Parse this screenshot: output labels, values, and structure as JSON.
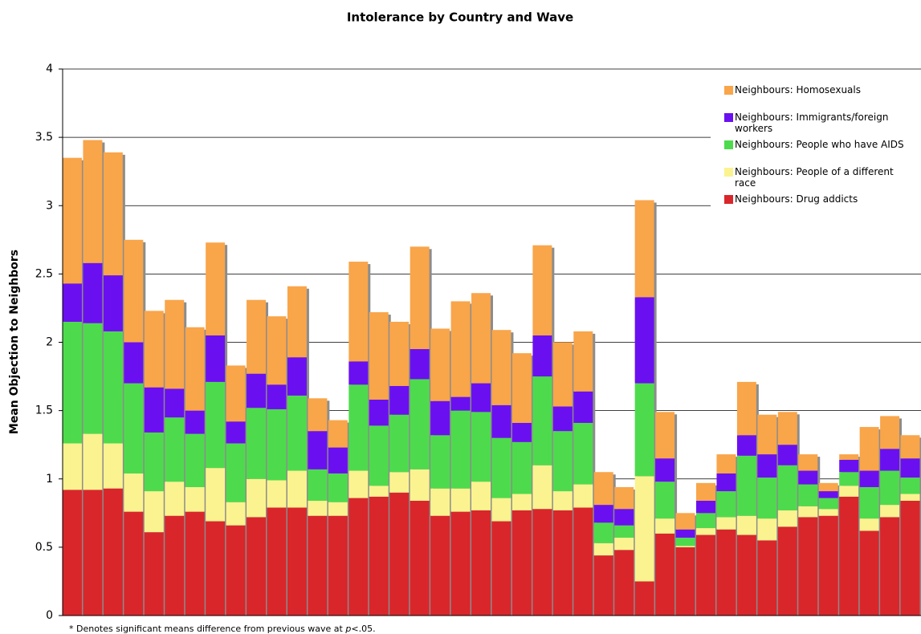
{
  "chart_data": {
    "type": "stacked_bar",
    "title": "Intolerance by Country and Wave",
    "y_label": "Mean Objection to Neighbors",
    "footnote": [
      "* Denotes significant means difference from previous wave at ",
      "p",
      "<.05."
    ],
    "categories": [
      null,
      null,
      null,
      null,
      null,
      null,
      null,
      null,
      null,
      null,
      null,
      null,
      null,
      null,
      null,
      null,
      null,
      null,
      null,
      null,
      null,
      null,
      null,
      null,
      null,
      null,
      null,
      null,
      null,
      null,
      null,
      null,
      null,
      null,
      null,
      null,
      null,
      null,
      null,
      null,
      null,
      null
    ],
    "ylim": [
      0,
      4
    ],
    "yticks": [
      0,
      0.5,
      1,
      1.5,
      2,
      2.5,
      3,
      3.5,
      4
    ],
    "grid": true,
    "legend": "upper right",
    "series": [
      {
        "name": "Neighbours: Drug addicts",
        "color": "#d9262b",
        "values": [
          0.92,
          0.92,
          0.93,
          0.76,
          0.61,
          0.73,
          0.76,
          0.69,
          0.66,
          0.72,
          0.79,
          0.79,
          0.73,
          0.73,
          0.86,
          0.87,
          0.9,
          0.84,
          0.73,
          0.76,
          0.77,
          0.69,
          0.77,
          0.78,
          0.77,
          0.79,
          0.44,
          0.48,
          0.25,
          0.6,
          0.5,
          0.59,
          0.63,
          0.59,
          0.55,
          0.65,
          0.72,
          0.73,
          0.87,
          0.62,
          0.72,
          0.84
        ]
      },
      {
        "name": "Neighbours: People of a different race",
        "color": "#fbf38f",
        "values": [
          0.34,
          0.41,
          0.33,
          0.28,
          0.3,
          0.25,
          0.18,
          0.39,
          0.17,
          0.28,
          0.2,
          0.27,
          0.11,
          0.1,
          0.2,
          0.08,
          0.15,
          0.23,
          0.2,
          0.17,
          0.21,
          0.17,
          0.12,
          0.32,
          0.14,
          0.17,
          0.09,
          0.09,
          0.77,
          0.11,
          0.01,
          0.05,
          0.09,
          0.14,
          0.16,
          0.12,
          0.08,
          0.05,
          0.08,
          0.09,
          0.09,
          0.05
        ]
      },
      {
        "name": "Neighbours: People who have AIDS",
        "color": "#4ddb4d",
        "values": [
          0.89,
          0.81,
          0.82,
          0.66,
          0.43,
          0.47,
          0.39,
          0.63,
          0.43,
          0.52,
          0.52,
          0.55,
          0.23,
          0.21,
          0.63,
          0.44,
          0.42,
          0.66,
          0.39,
          0.57,
          0.51,
          0.44,
          0.38,
          0.65,
          0.44,
          0.45,
          0.15,
          0.09,
          0.68,
          0.27,
          0.06,
          0.11,
          0.19,
          0.44,
          0.3,
          0.33,
          0.16,
          0.08,
          0.1,
          0.23,
          0.25,
          0.12
        ]
      },
      {
        "name": "Neighbours: Immigrants/foreign workers",
        "color": "#6a10f0",
        "values": [
          0.28,
          0.44,
          0.41,
          0.3,
          0.33,
          0.21,
          0.17,
          0.34,
          0.16,
          0.25,
          0.18,
          0.28,
          0.28,
          0.19,
          0.17,
          0.19,
          0.21,
          0.22,
          0.25,
          0.1,
          0.21,
          0.24,
          0.14,
          0.3,
          0.18,
          0.23,
          0.13,
          0.12,
          0.63,
          0.17,
          0.06,
          0.09,
          0.13,
          0.15,
          0.17,
          0.15,
          0.1,
          0.05,
          0.09,
          0.12,
          0.16,
          0.14
        ]
      },
      {
        "name": "Neighbours: Homosexuals",
        "color": "#f9a54a",
        "values": [
          0.92,
          0.9,
          0.9,
          0.75,
          0.56,
          0.65,
          0.61,
          0.68,
          0.41,
          0.54,
          0.5,
          0.52,
          0.24,
          0.2,
          0.73,
          0.64,
          0.47,
          0.75,
          0.53,
          0.7,
          0.66,
          0.55,
          0.51,
          0.66,
          0.47,
          0.44,
          0.24,
          0.16,
          0.71,
          0.34,
          0.12,
          0.13,
          0.14,
          0.39,
          0.29,
          0.24,
          0.12,
          0.06,
          0.04,
          0.32,
          0.24,
          0.17
        ]
      }
    ]
  }
}
